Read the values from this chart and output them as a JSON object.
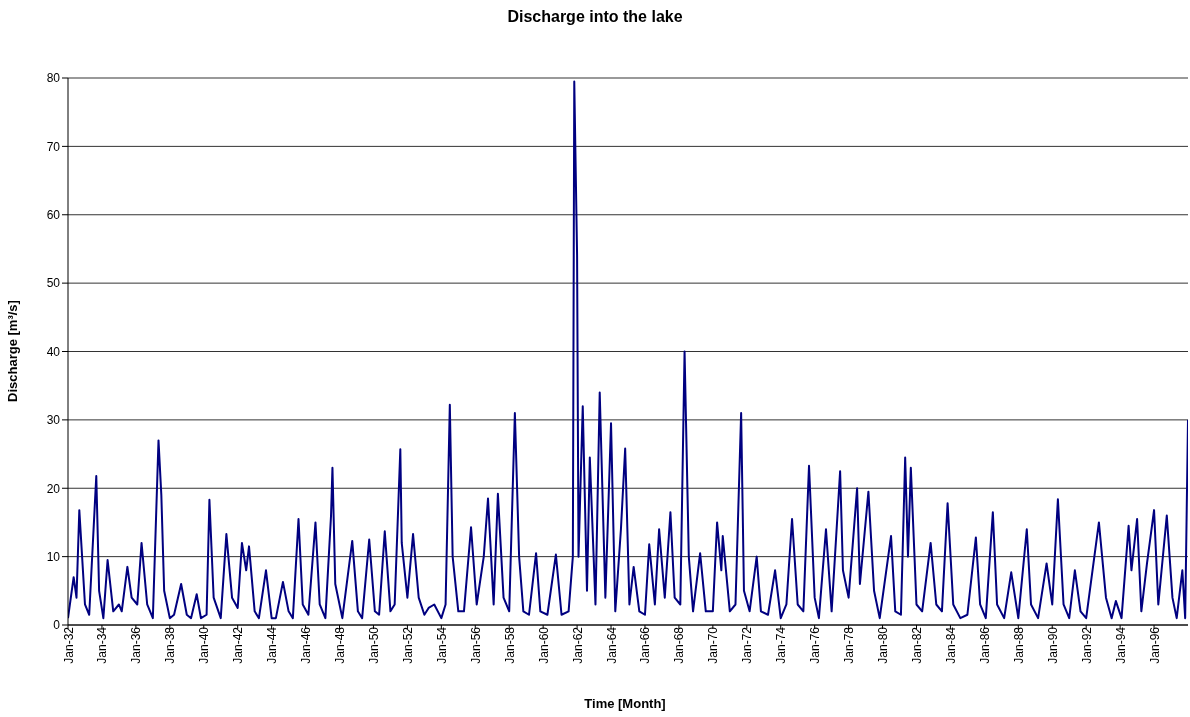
{
  "chart_data": {
    "type": "line",
    "title": "Discharge into the lake",
    "xlabel": "Time [Month]",
    "ylabel": "Discharge [m³/s]",
    "xlim": [
      "1932-01",
      "1998-01"
    ],
    "ylim": [
      0,
      80
    ],
    "yticks": [
      0,
      10,
      20,
      30,
      40,
      50,
      60,
      70,
      80
    ],
    "xticks": [
      {
        "value": "1932-01",
        "label": "Jan-32"
      },
      {
        "value": "1934-01",
        "label": "Jan-34"
      },
      {
        "value": "1936-01",
        "label": "Jan-36"
      },
      {
        "value": "1938-01",
        "label": "Jan-38"
      },
      {
        "value": "1940-01",
        "label": "Jan-40"
      },
      {
        "value": "1942-01",
        "label": "Jan-42"
      },
      {
        "value": "1944-01",
        "label": "Jan-44"
      },
      {
        "value": "1946-01",
        "label": "Jan-46"
      },
      {
        "value": "1948-01",
        "label": "Jan-48"
      },
      {
        "value": "1950-01",
        "label": "Jan-50"
      },
      {
        "value": "1952-01",
        "label": "Jan-52"
      },
      {
        "value": "1954-01",
        "label": "Jan-54"
      },
      {
        "value": "1956-01",
        "label": "Jan-56"
      },
      {
        "value": "1958-01",
        "label": "Jan-58"
      },
      {
        "value": "1960-01",
        "label": "Jan-60"
      },
      {
        "value": "1962-01",
        "label": "Jan-62"
      },
      {
        "value": "1964-01",
        "label": "Jan-64"
      },
      {
        "value": "1966-01",
        "label": "Jan-66"
      },
      {
        "value": "1968-01",
        "label": "Jan-68"
      },
      {
        "value": "1970-01",
        "label": "Jan-70"
      },
      {
        "value": "1972-01",
        "label": "Jan-72"
      },
      {
        "value": "1974-01",
        "label": "Jan-74"
      },
      {
        "value": "1976-01",
        "label": "Jan-76"
      },
      {
        "value": "1978-01",
        "label": "Jan-78"
      },
      {
        "value": "1980-01",
        "label": "Jan-80"
      },
      {
        "value": "1982-01",
        "label": "Jan-82"
      },
      {
        "value": "1984-01",
        "label": "Jan-84"
      },
      {
        "value": "1986-01",
        "label": "Jan-86"
      },
      {
        "value": "1988-01",
        "label": "Jan-88"
      },
      {
        "value": "1990-01",
        "label": "Jan-90"
      },
      {
        "value": "1992-01",
        "label": "Jan-92"
      },
      {
        "value": "1994-01",
        "label": "Jan-94"
      },
      {
        "value": "1996-01",
        "label": "Jan-96"
      }
    ],
    "grid": "y",
    "marker": "none",
    "line_style": "solid",
    "series": [
      {
        "color": "#000080",
        "x": [
          "1932-01",
          "1932-05",
          "1932-07",
          "1932-09",
          "1933-01",
          "1933-04",
          "1933-09",
          "1933-11",
          "1934-02",
          "1934-05",
          "1934-09",
          "1935-01",
          "1935-03",
          "1935-07",
          "1935-10",
          "1936-02",
          "1936-05",
          "1936-09",
          "1937-01",
          "1937-05",
          "1937-07",
          "1937-09",
          "1938-01",
          "1938-04",
          "1938-09",
          "1939-01",
          "1939-04",
          "1939-08",
          "1939-11",
          "1940-03",
          "1940-05",
          "1940-08",
          "1941-01",
          "1941-05",
          "1941-09",
          "1942-01",
          "1942-04",
          "1942-07",
          "1942-09",
          "1943-01",
          "1943-04",
          "1943-09",
          "1944-01",
          "1944-04",
          "1944-09",
          "1945-01",
          "1945-04",
          "1945-08",
          "1945-11",
          "1946-03",
          "1946-08",
          "1946-11",
          "1947-03",
          "1947-07",
          "1947-08",
          "1947-10",
          "1948-03",
          "1948-10",
          "1949-02",
          "1949-05",
          "1949-10",
          "1950-02",
          "1950-05",
          "1950-09",
          "1951-01",
          "1951-04",
          "1951-08",
          "1951-09",
          "1952-01",
          "1952-05",
          "1952-09",
          "1953-01",
          "1953-04",
          "1953-08",
          "1954-01",
          "1954-04",
          "1954-07",
          "1954-09",
          "1955-01",
          "1955-05",
          "1955-10",
          "1956-02",
          "1956-07",
          "1956-10",
          "1957-02",
          "1957-05",
          "1957-09",
          "1958-01",
          "1958-05",
          "1958-08",
          "1958-11",
          "1959-03",
          "1959-08",
          "1959-11",
          "1960-04",
          "1960-10",
          "1961-02",
          "1961-07",
          "1961-10",
          "1961-11",
          "1962-01",
          "1962-02",
          "1962-05",
          "1962-08",
          "1962-10",
          "1963-02",
          "1963-05",
          "1963-09",
          "1964-01",
          "1964-04",
          "1964-08",
          "1964-11",
          "1965-02",
          "1965-05",
          "1965-09",
          "1966-01",
          "1966-04",
          "1966-08",
          "1966-11",
          "1967-03",
          "1967-07",
          "1967-10",
          "1968-02",
          "1968-05",
          "1968-08",
          "1968-11",
          "1969-04",
          "1969-08",
          "1970-01",
          "1970-04",
          "1970-07",
          "1970-08",
          "1971-01",
          "1971-05",
          "1971-09",
          "1971-11",
          "1972-03",
          "1972-08",
          "1972-11",
          "1973-04",
          "1973-09",
          "1974-01",
          "1974-05",
          "1974-09",
          "1975-01",
          "1975-05",
          "1975-09",
          "1976-01",
          "1976-04",
          "1976-09",
          "1977-01",
          "1977-07",
          "1977-09",
          "1978-01",
          "1978-07",
          "1978-09",
          "1979-03",
          "1979-07",
          "1979-11",
          "1980-07",
          "1980-10",
          "1981-02",
          "1981-05",
          "1981-07",
          "1981-09",
          "1982-01",
          "1982-05",
          "1982-11",
          "1983-03",
          "1983-07",
          "1983-11",
          "1984-03",
          "1984-08",
          "1985-01",
          "1985-07",
          "1985-10",
          "1986-02",
          "1986-07",
          "1986-10",
          "1987-03",
          "1987-08",
          "1988-01",
          "1988-07",
          "1988-10",
          "1989-03",
          "1989-09",
          "1990-01",
          "1990-05",
          "1990-09",
          "1991-01",
          "1991-05",
          "1991-09",
          "1992-01",
          "1992-10",
          "1993-03",
          "1993-07",
          "1993-10",
          "1994-02",
          "1994-07",
          "1994-09",
          "1995-01",
          "1995-04",
          "1995-08",
          "1996-01",
          "1996-04",
          "1996-10",
          "1997-02",
          "1997-05",
          "1997-09",
          "1997-11",
          "1998-01"
        ],
        "values": [
          1,
          7,
          4,
          16.8,
          3,
          1.5,
          21.8,
          5,
          1,
          9.5,
          2,
          3,
          2,
          8.5,
          4,
          3,
          12,
          3,
          1,
          27,
          19,
          5,
          1,
          1.5,
          6,
          1.5,
          1,
          4.5,
          1,
          1.5,
          18.3,
          4,
          1,
          13.3,
          4,
          2.5,
          12,
          8,
          11.5,
          2,
          1,
          8,
          1,
          1,
          6.3,
          2,
          1,
          15.5,
          3,
          1.5,
          15,
          3,
          1,
          16,
          23,
          6,
          1,
          12.3,
          2,
          1,
          12.5,
          2,
          1.5,
          13.7,
          2,
          3,
          25.7,
          12,
          4,
          13.3,
          4,
          1.5,
          2.5,
          3,
          1,
          3,
          32.2,
          10,
          2,
          2,
          14.3,
          3,
          10,
          18.5,
          3,
          19.2,
          4,
          2,
          31,
          10,
          2,
          1.5,
          10.5,
          2,
          1.5,
          10.3,
          1.5,
          2,
          10,
          79.5,
          54,
          10,
          32,
          5,
          24.5,
          3,
          34,
          4,
          29.5,
          2,
          14,
          25.8,
          3,
          8.5,
          2,
          1.5,
          11.8,
          3,
          14,
          4,
          16.5,
          4,
          3,
          40,
          10,
          2,
          10.5,
          2,
          2,
          15,
          8,
          13,
          2,
          3,
          31,
          5,
          2,
          10,
          2,
          1.5,
          8,
          1,
          3,
          15.5,
          3,
          2,
          23.3,
          4,
          1,
          14,
          2,
          22.5,
          8,
          4,
          20,
          6,
          19.5,
          5,
          1,
          13,
          2,
          1.5,
          24.5,
          10,
          23,
          3,
          2,
          12,
          3,
          2,
          17.8,
          3,
          1,
          1.5,
          12.8,
          3,
          1,
          16.5,
          3,
          1,
          7.7,
          1,
          14,
          3,
          1,
          9,
          3,
          18.4,
          3,
          1,
          8,
          2,
          1,
          15,
          4,
          1,
          3.5,
          1,
          14.5,
          8,
          15.5,
          2,
          9,
          16.8,
          3,
          16,
          4,
          1,
          8,
          1,
          30
        ]
      }
    ]
  }
}
